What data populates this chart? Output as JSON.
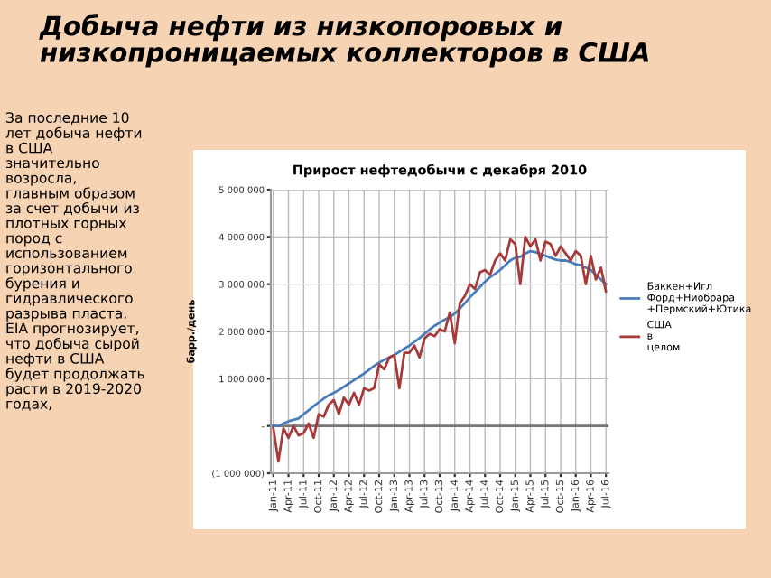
{
  "chart_data": {
    "type": "line",
    "title": "Добыча нефти из низкопоровых и\nнизкопроницаемых коллекторов в США",
    "subtitle": "Прирост нефтедобычи с декабря 2010",
    "ylabel": "барр./день",
    "annotations": [
      "За последние 10\nлет добыча нефти\nв США\nзначительно\nвозросла,\nглавным образом\nза счет добычи из\nплотных горных\nпород с\nиспользованием\nгоризонтального\nбурения и\nгидравлического\nразрыва пласта.\nEIA прогнозирует,\nчто добыча сырой\nнефти в США\nбудет продолжать\nрасти в 2019-2020\nгодах,"
    ],
    "categories": [
      "Jan-11",
      null,
      null,
      "Apr-11",
      null,
      null,
      "Jul-11",
      null,
      null,
      "Oct-11",
      null,
      null,
      "Jan-12",
      null,
      null,
      "Apr-12",
      null,
      null,
      "Jul-12",
      null,
      null,
      "Oct-12",
      null,
      null,
      "Jan-13",
      null,
      null,
      "Apr-13",
      null,
      null,
      "Jul-13",
      null,
      null,
      "Oct-13",
      null,
      null,
      "Jan-14",
      null,
      null,
      "Apr-14",
      null,
      null,
      "Jul-14",
      null,
      null,
      "Oct-14",
      null,
      null,
      "Jan-15",
      null,
      null,
      "Apr-15",
      null,
      null,
      "Jul-15",
      null,
      null,
      "Oct-15",
      null,
      null,
      "Jan-16",
      null,
      null,
      "Apr-16",
      null,
      null,
      "Jul-16"
    ],
    "series": [
      {
        "name": "Баккен+Игл Форд+Ниобрара +Пермский+Ютика",
        "color": "#4a7ebb",
        "values": [
          0,
          0,
          50000,
          100000,
          130000,
          160000,
          250000,
          330000,
          420000,
          500000,
          580000,
          650000,
          700000,
          760000,
          830000,
          900000,
          970000,
          1040000,
          1110000,
          1190000,
          1270000,
          1340000,
          1400000,
          1450000,
          1500000,
          1570000,
          1640000,
          1700000,
          1780000,
          1860000,
          1950000,
          2040000,
          2120000,
          2190000,
          2250000,
          2300000,
          2380000,
          2480000,
          2600000,
          2720000,
          2830000,
          2940000,
          3050000,
          3150000,
          3220000,
          3300000,
          3400000,
          3500000,
          3560000,
          3580000,
          3650000,
          3700000,
          3680000,
          3640000,
          3600000,
          3560000,
          3520000,
          3500000,
          3500000,
          3470000,
          3420000,
          3400000,
          3350000,
          3300000,
          3200000,
          3100000,
          3000000
        ]
      },
      {
        "name": "США в целом",
        "color": "#a63a3a",
        "values": [
          -50000,
          -750000,
          -50000,
          -250000,
          0,
          -200000,
          -150000,
          50000,
          -250000,
          250000,
          200000,
          450000,
          550000,
          250000,
          600000,
          450000,
          700000,
          450000,
          800000,
          750000,
          800000,
          1300000,
          1200000,
          1450000,
          1500000,
          800000,
          1550000,
          1550000,
          1700000,
          1450000,
          1850000,
          1950000,
          1900000,
          2050000,
          2000000,
          2400000,
          1750000,
          2600000,
          2750000,
          3000000,
          2900000,
          3250000,
          3300000,
          3200000,
          3500000,
          3650000,
          3500000,
          3950000,
          3850000,
          3000000,
          4000000,
          3800000,
          3950000,
          3500000,
          3900000,
          3850000,
          3600000,
          3800000,
          3650000,
          3500000,
          3700000,
          3600000,
          3000000,
          3600000,
          3100000,
          3350000,
          2850000
        ]
      }
    ],
    "ylim": [
      -1000000,
      5000000
    ],
    "yticks": [
      {
        "value": -1000000,
        "label": "(1 000 000)"
      },
      {
        "value": 0,
        "label": "-"
      },
      {
        "value": 1000000,
        "label": "1 000 000"
      },
      {
        "value": 2000000,
        "label": "2 000 000"
      },
      {
        "value": 3000000,
        "label": "3 000 000"
      },
      {
        "value": 4000000,
        "label": "4 000 000"
      },
      {
        "value": 5000000,
        "label": "5 000 000"
      }
    ],
    "grid": true,
    "legend": "right",
    "marker": "none",
    "line_style": "solid"
  }
}
